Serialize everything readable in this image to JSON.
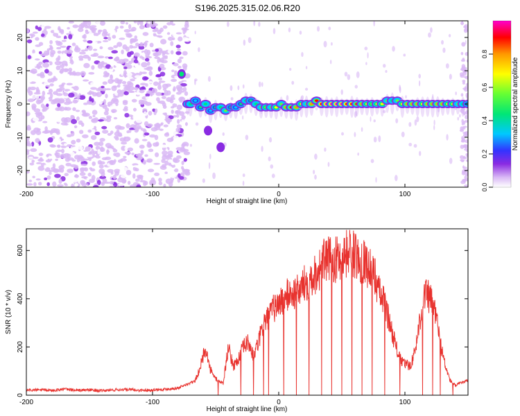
{
  "title": "S196.2025.315.02.06.R20",
  "chart_data": [
    {
      "type": "heatmap",
      "name": "spectrogram",
      "xlabel": "Height of straight line (km)",
      "ylabel": "Frequency (Hz)",
      "xlim": [
        -200,
        150
      ],
      "ylim": [
        -25,
        25
      ],
      "xticks": [
        -200,
        -100,
        0,
        100
      ],
      "yticks": [
        -20,
        -10,
        0,
        10,
        20
      ],
      "colorbar": {
        "label": "Normalized spectral amplitude",
        "range": [
          0,
          1
        ],
        "ticks": [
          0.0,
          0.2,
          0.4,
          0.6,
          0.8
        ],
        "tick_labels": [
          "0.0",
          "0.2",
          "0.4",
          "0.6",
          "0.8"
        ],
        "colormap": [
          "#ffffff",
          "#d9b8f5",
          "#8a2be2",
          "#3333ff",
          "#00c8ff",
          "#00e676",
          "#66ff33",
          "#ffff00",
          "#ff9900",
          "#ff0000",
          "#ff00cc"
        ]
      },
      "noise_region_x": [
        -200,
        -72
      ],
      "trace": {
        "x": [
          -72,
          -70,
          -66,
          -62,
          -58,
          -54,
          -50,
          -46,
          -42,
          -38,
          -34,
          -30,
          -26,
          -22,
          -18,
          -14,
          -10,
          -6,
          -2,
          2,
          6,
          10,
          14,
          18,
          22,
          26,
          30,
          34,
          38,
          42,
          46,
          50,
          54,
          58,
          62,
          66,
          70,
          74,
          78,
          82,
          86,
          90,
          94,
          98,
          102,
          106,
          110,
          114,
          118,
          122,
          126,
          130,
          134,
          138,
          142,
          146,
          150
        ],
        "freq": [
          0,
          0,
          1,
          -1,
          0,
          -2,
          -1,
          -1,
          -2,
          -1,
          -1,
          0,
          1,
          1,
          0,
          -1,
          -1,
          -1,
          -1,
          0,
          -1,
          -1,
          -1,
          0,
          0,
          0,
          1,
          0,
          0,
          0,
          0,
          0,
          0,
          0,
          0,
          0,
          0,
          0,
          0,
          0,
          1,
          1,
          1,
          0,
          0,
          0,
          0,
          0,
          0,
          0,
          0,
          0,
          0,
          0,
          0,
          0,
          0
        ],
        "amplitude": [
          0.4,
          0.5,
          0.35,
          0.45,
          0.5,
          0.35,
          0.45,
          0.5,
          0.55,
          0.45,
          0.4,
          0.45,
          0.5,
          0.45,
          0.5,
          0.55,
          0.6,
          0.55,
          0.7,
          0.55,
          0.8,
          0.85,
          0.8,
          0.7,
          0.55,
          0.75,
          0.85,
          0.9,
          0.95,
          0.95,
          0.95,
          0.95,
          0.9,
          0.9,
          0.85,
          0.75,
          0.7,
          0.6,
          0.65,
          0.7,
          0.55,
          0.5,
          0.55,
          0.7,
          0.75,
          0.8,
          0.75,
          0.7,
          0.75,
          0.8,
          0.8,
          0.75,
          0.7,
          0.65,
          0.55,
          0.5,
          0.45
        ]
      },
      "isolated_blobs": [
        {
          "x": -77,
          "freq": 9,
          "amplitude": 0.5
        },
        {
          "x": -46,
          "freq": -13,
          "amplitude": 0.2
        },
        {
          "x": -56,
          "freq": -8,
          "amplitude": 0.15
        }
      ]
    },
    {
      "type": "line",
      "name": "snr",
      "xlabel": "Height of straight line (km)",
      "ylabel": "SNR (10 * v/v)",
      "xlim": [
        -200,
        150
      ],
      "ylim": [
        0,
        690
      ],
      "xticks": [
        -200,
        -100,
        0,
        100
      ],
      "yticks": [
        0,
        200,
        400,
        600
      ],
      "color": "#e8322e",
      "series": [
        {
          "name": "SNR",
          "x": [
            -200,
            -190,
            -180,
            -170,
            -160,
            -150,
            -140,
            -130,
            -120,
            -110,
            -100,
            -90,
            -80,
            -75,
            -70,
            -66,
            -62,
            -58,
            -55,
            -52,
            -48,
            -44,
            -40,
            -36,
            -32,
            -28,
            -24,
            -20,
            -16,
            -12,
            -8,
            -4,
            0,
            4,
            8,
            12,
            16,
            20,
            24,
            28,
            32,
            36,
            40,
            44,
            48,
            52,
            56,
            60,
            64,
            68,
            72,
            76,
            80,
            84,
            88,
            92,
            96,
            100,
            104,
            108,
            112,
            116,
            120,
            124,
            128,
            132,
            136,
            140,
            144,
            150
          ],
          "y": [
            20,
            22,
            20,
            25,
            20,
            22,
            18,
            22,
            24,
            20,
            22,
            25,
            30,
            40,
            50,
            60,
            120,
            200,
            120,
            80,
            60,
            50,
            200,
            120,
            150,
            200,
            220,
            160,
            220,
            300,
            320,
            360,
            380,
            400,
            420,
            420,
            430,
            460,
            480,
            500,
            520,
            560,
            560,
            560,
            570,
            580,
            600,
            580,
            560,
            560,
            520,
            500,
            420,
            380,
            300,
            220,
            150,
            130,
            120,
            180,
            320,
            420,
            400,
            350,
            220,
            120,
            60,
            40,
            50,
            60
          ]
        }
      ],
      "dropouts_x": [
        -48,
        -30,
        -20,
        -12,
        -8,
        4,
        14,
        24,
        34,
        42,
        50,
        58,
        66,
        74,
        84,
        96,
        114,
        122,
        128,
        138
      ]
    }
  ]
}
